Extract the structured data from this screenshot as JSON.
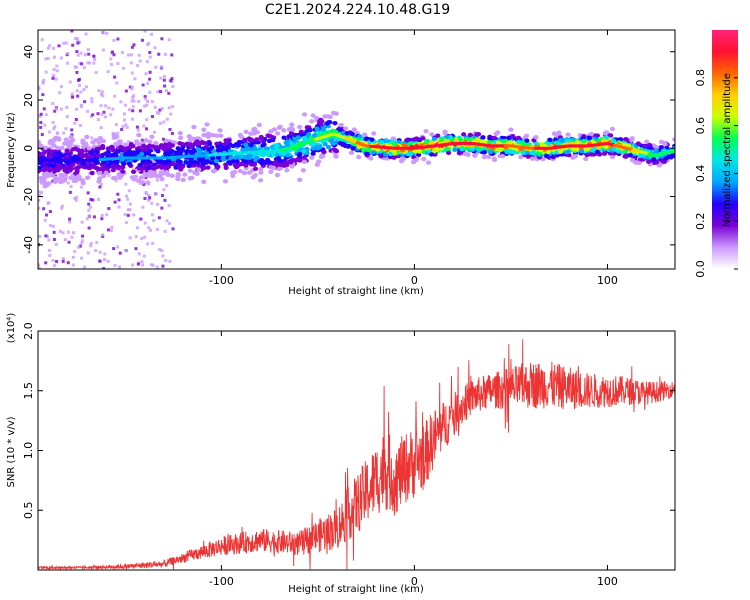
{
  "title": "C2E1.2024.224.10.48.G19",
  "colors": {
    "snr_line": "#ee3333",
    "cmap": [
      "#ffffff",
      "#cc99ff",
      "#7a00d6",
      "#2200ff",
      "#00a6ff",
      "#00e6e6",
      "#00ff55",
      "#ccff00",
      "#ffd000",
      "#ff6600",
      "#ff1133",
      "#ff2277"
    ]
  },
  "chart_data": [
    {
      "type": "heatmap",
      "title": "",
      "xlabel": "Height of straight line (km)",
      "ylabel": "Frequency (Hz)",
      "xlim": [
        -195,
        135
      ],
      "ylim": [
        -50,
        49
      ],
      "xticks": [
        -100,
        0,
        100
      ],
      "yticks": [
        -40,
        -20,
        0,
        20,
        40
      ],
      "colorbar": {
        "label": "Normalized spectral amplitude",
        "range": [
          0,
          1
        ],
        "ticks": [
          "0.0",
          "0.2",
          "0.4",
          "0.6",
          "0.8"
        ],
        "tick_values": [
          0,
          0.2,
          0.4,
          0.6,
          0.8
        ]
      },
      "ridge": {
        "height_km": [
          -195,
          -170,
          -150,
          -130,
          -110,
          -90,
          -70,
          -60,
          -50,
          -42,
          -35,
          -25,
          -10,
          0,
          10,
          20,
          30,
          40,
          50,
          60,
          70,
          80,
          90,
          100,
          110,
          115,
          120,
          125,
          135
        ],
        "frequency_hz": [
          -5,
          -5,
          -4,
          -4,
          -3,
          -2,
          -1,
          1,
          4,
          6,
          4,
          1,
          0,
          0,
          1,
          2,
          2,
          1,
          1,
          0,
          0,
          1,
          1,
          2,
          0,
          -1,
          -2,
          -3,
          -1
        ],
        "peak_amplitude": [
          0.3,
          0.3,
          0.35,
          0.35,
          0.4,
          0.45,
          0.5,
          0.55,
          0.6,
          0.6,
          0.7,
          0.85,
          0.95,
          0.95,
          0.95,
          0.95,
          0.9,
          0.9,
          0.85,
          0.85,
          0.9,
          0.9,
          0.9,
          0.9,
          0.8,
          0.75,
          0.6,
          0.55,
          0.5
        ]
      },
      "noise_band_km": [
        -195,
        -125
      ]
    },
    {
      "type": "line",
      "title": "",
      "xlabel": "Height of straight line (km)",
      "ylabel": "SNR (10 * v/v)",
      "ylabel_exponent": "(x10⁴)",
      "xlim": [
        -195,
        135
      ],
      "ylim": [
        0,
        2.0
      ],
      "xticks": [
        -100,
        0,
        100
      ],
      "yticks": [
        "0.5",
        "1.0",
        "1.5",
        "2.0"
      ],
      "ytick_values": [
        0.5,
        1.0,
        1.5,
        2.0
      ],
      "series": [
        {
          "name": "SNR",
          "x": [
            -195,
            -170,
            -150,
            -130,
            -120,
            -100,
            -80,
            -60,
            -40,
            -30,
            -20,
            -15,
            -10,
            -5,
            0,
            5,
            10,
            20,
            30,
            40,
            50,
            60,
            70,
            80,
            90,
            100,
            110,
            120,
            130,
            135
          ],
          "y": [
            0.02,
            0.02,
            0.03,
            0.05,
            0.1,
            0.2,
            0.25,
            0.22,
            0.35,
            0.55,
            0.75,
            0.85,
            0.75,
            0.85,
            0.9,
            0.95,
            1.1,
            1.3,
            1.45,
            1.5,
            1.52,
            1.55,
            1.55,
            1.52,
            1.5,
            1.5,
            1.5,
            1.48,
            1.5,
            1.52
          ],
          "noise_amplitude": [
            0.01,
            0.01,
            0.02,
            0.03,
            0.04,
            0.08,
            0.1,
            0.1,
            0.18,
            0.25,
            0.3,
            0.35,
            0.3,
            0.3,
            0.3,
            0.28,
            0.25,
            0.18,
            0.15,
            0.15,
            0.18,
            0.2,
            0.2,
            0.18,
            0.15,
            0.14,
            0.12,
            0.1,
            0.08,
            0.06
          ]
        }
      ]
    }
  ]
}
